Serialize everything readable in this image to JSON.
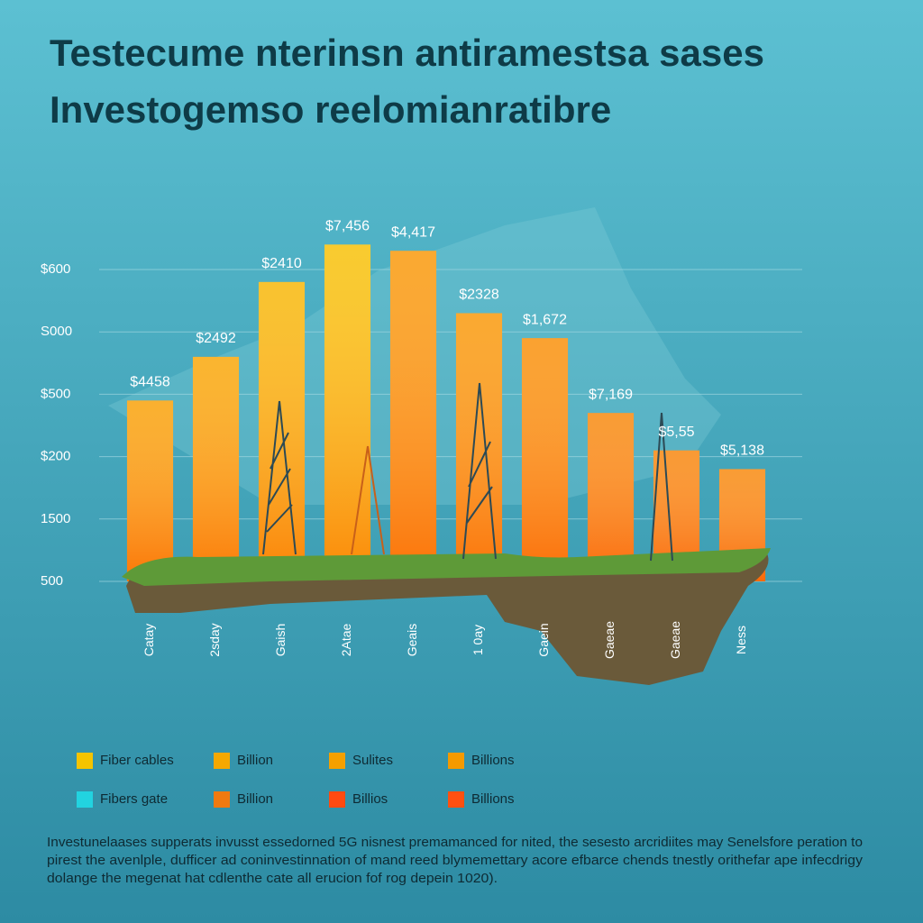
{
  "chart_data": {
    "type": "bar",
    "title": [
      "Testecume nterinsn antiramestsa sases",
      "Investogemso reelomianratibre"
    ],
    "categories": [
      "Catay",
      "2sday",
      "Gaish",
      "2Atae",
      "Geais",
      "1 0ay",
      "Gaein",
      "Gaeae",
      "Gaeae",
      "Ness"
    ],
    "values": [
      2.9,
      3.6,
      4.8,
      5.4,
      5.3,
      4.3,
      3.9,
      2.7,
      2.1,
      1.8
    ],
    "bar_labels": [
      "$4458",
      "$2492",
      "$2410",
      "$7,456",
      "$4,417",
      "$2328",
      "$1,672",
      "$7,169",
      "$5,55",
      "$5,138"
    ],
    "colors": [
      "#f9a20a",
      "#f9a80a",
      "#f8b80a",
      "#f8c20a",
      "#f99a0c",
      "#f99a0c",
      "#f9920c",
      "#f88a10",
      "#f88810",
      "#f88a10"
    ],
    "ylim": [
      0,
      5
    ],
    "yticks": [
      {
        "value": 0,
        "label": "500"
      },
      {
        "value": 1,
        "label": "1500"
      },
      {
        "value": 2,
        "label": "$200"
      },
      {
        "value": 3,
        "label": "$500"
      },
      {
        "value": 4,
        "label": "S000"
      },
      {
        "value": 5,
        "label": "$600"
      }
    ],
    "grid": true,
    "legend": [
      {
        "name": "Fiber cables",
        "color": "#f5c400"
      },
      {
        "name": "Billion",
        "color": "#f5a800"
      },
      {
        "name": "Sulites",
        "color": "#f5a000"
      },
      {
        "name": "Billions",
        "color": "#f59a00"
      },
      {
        "name": "Fibers gate",
        "color": "#22d3e0"
      },
      {
        "name": "Billion",
        "color": "#f07a10"
      },
      {
        "name": "Billios",
        "color": "#ff4a10"
      },
      {
        "name": "Billions",
        "color": "#ff5010"
      }
    ],
    "footnote": [
      "Investunelaases supperats invusst essedorned 5G nisnest premamanced for nited, the sesesto arcridiites may Senelsfore peration to",
      "pirest the avenlple, dufficer ad coninvestinnation of mand reed blymemettary acore efbarce chends tnestly orithefar ape infecdrigy",
      "dolange the megenat hat cdlenthe cate all erucion fof rog depein 1020)."
    ]
  }
}
